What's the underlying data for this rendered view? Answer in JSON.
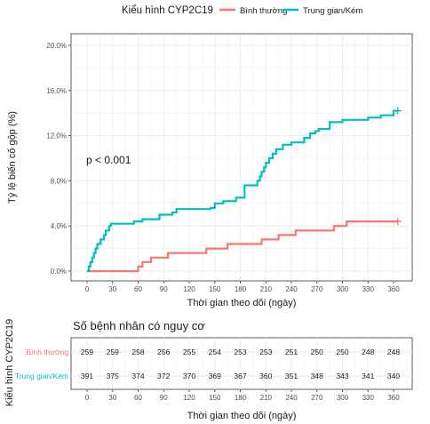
{
  "chart_data": {
    "type": "line",
    "legend": {
      "title": "Kiểu hình CYP2C19",
      "position": "top"
    },
    "ylabel": "Tỷ lệ biến cố gộp (%)",
    "xlabel": "Thời gian theo dõi (ngày)",
    "ylim": [
      0,
      20
    ],
    "xlim": [
      0,
      365
    ],
    "grid": true,
    "yticks": [
      "0.0%",
      "4.0%",
      "8.0%",
      "12.0%",
      "16.0%",
      "20.0%"
    ],
    "xticks": [
      "0",
      "30",
      "60",
      "90",
      "120",
      "150",
      "180",
      "210",
      "240",
      "270",
      "300",
      "330",
      "360"
    ],
    "annotation": "p < 0.001",
    "series": [
      {
        "name": "Bình thường",
        "color": "#F8766D",
        "x": [
          0,
          60,
          65,
          75,
          95,
          140,
          165,
          205,
          225,
          245,
          290,
          305,
          365
        ],
        "y": [
          0,
          0.4,
          0.8,
          1.2,
          1.6,
          2.0,
          2.4,
          2.8,
          3.2,
          3.6,
          4.0,
          4.4,
          4.4
        ]
      },
      {
        "name": "Trung gian/Kém",
        "color": "#00BFC4",
        "x": [
          0,
          2,
          4,
          6,
          8,
          10,
          12,
          16,
          20,
          22,
          26,
          28,
          30,
          35,
          40,
          55,
          65,
          85,
          100,
          105,
          125,
          145,
          150,
          160,
          175,
          185,
          193,
          200,
          203,
          205,
          208,
          210,
          214,
          218,
          222,
          230,
          240,
          255,
          262,
          268,
          272,
          285,
          300,
          330,
          345,
          360,
          365
        ],
        "y": [
          0,
          0.4,
          0.8,
          1.2,
          1.6,
          2.0,
          2.4,
          2.8,
          3.2,
          3.6,
          4.0,
          4.2,
          4.2,
          4.2,
          4.2,
          4.4,
          4.6,
          5.0,
          5.2,
          5.5,
          5.5,
          5.6,
          6.0,
          6.2,
          6.5,
          7.6,
          7.6,
          8.0,
          8.4,
          8.8,
          9.2,
          9.6,
          10.0,
          10.4,
          10.8,
          11.2,
          11.4,
          11.8,
          12.2,
          12.4,
          12.6,
          13.2,
          13.4,
          13.6,
          13.8,
          14.2,
          14.2
        ]
      }
    ],
    "risk_table": {
      "title": "Số bệnh nhân có nguy cơ",
      "ylabel": "Kiểu hình CYP2C19",
      "xlabel": "Thời gian theo dõi (ngày)",
      "times": [
        0,
        30,
        60,
        90,
        120,
        150,
        180,
        210,
        240,
        270,
        300,
        330,
        360
      ],
      "rows": [
        {
          "name": "Bình thường",
          "color": "#F8766D",
          "values": [
            259,
            259,
            258,
            256,
            255,
            254,
            253,
            253,
            251,
            250,
            250,
            248,
            248
          ]
        },
        {
          "name": "Trung gian/Kém",
          "color": "#00BFC4",
          "values": [
            391,
            375,
            374,
            372,
            370,
            369,
            367,
            360,
            351,
            348,
            343,
            341,
            340
          ]
        }
      ]
    }
  }
}
